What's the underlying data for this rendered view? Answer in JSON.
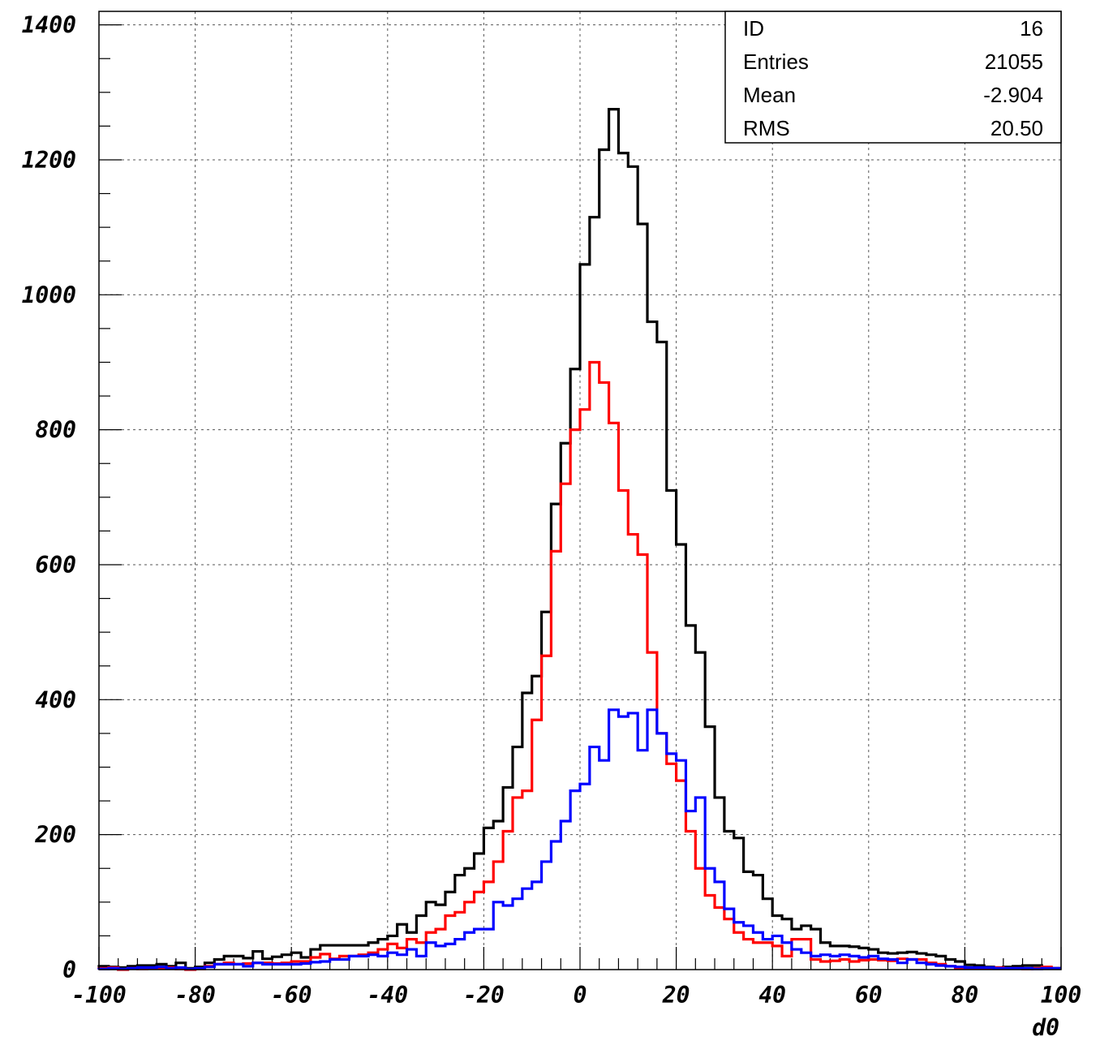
{
  "chart_data": {
    "type": "line",
    "xlabel": "d0",
    "ylabel": "",
    "xlim": [
      -100,
      100
    ],
    "ylim": [
      0,
      1420
    ],
    "bin_width": 2,
    "grid": true,
    "x_ticks": [
      -100,
      -80,
      -60,
      -40,
      -20,
      0,
      20,
      40,
      60,
      80,
      100
    ],
    "y_ticks": [
      0,
      200,
      400,
      600,
      800,
      1000,
      1200,
      1400
    ],
    "stats_box": {
      "rows": [
        {
          "label": "ID",
          "value": "16"
        },
        {
          "label": "Entries",
          "value": "21055"
        },
        {
          "label": "Mean",
          "value": "-2.904"
        },
        {
          "label": "RMS",
          "value": "20.50"
        }
      ]
    },
    "series": [
      {
        "color": "#000000",
        "values": [
          5,
          4,
          3,
          5,
          6,
          6,
          8,
          5,
          10,
          2,
          4,
          10,
          15,
          20,
          20,
          17,
          27,
          16,
          19,
          22,
          25,
          18,
          30,
          36,
          36,
          36,
          36,
          36,
          40,
          45,
          50,
          67,
          55,
          80,
          100,
          96,
          115,
          140,
          150,
          172,
          210,
          220,
          270,
          330,
          410,
          435,
          530,
          690,
          780,
          890,
          1045,
          1115,
          1215,
          1275,
          1210,
          1190,
          1105,
          960,
          930,
          710,
          630,
          510,
          470,
          360,
          255,
          205,
          195,
          145,
          140,
          105,
          80,
          75,
          60,
          65,
          60,
          40,
          35,
          35,
          34,
          32,
          30,
          25,
          24,
          25,
          26,
          24,
          22,
          20,
          15,
          12,
          7,
          6,
          4,
          3,
          4,
          5,
          6,
          6,
          3,
          2
        ]
      },
      {
        "color": "#ff0000",
        "values": [
          2,
          3,
          0,
          2,
          1,
          2,
          2,
          3,
          1,
          0,
          1,
          5,
          8,
          10,
          8,
          9,
          10,
          10,
          9,
          10,
          12,
          12,
          18,
          23,
          16,
          20,
          20,
          22,
          25,
          30,
          38,
          32,
          45,
          40,
          55,
          60,
          80,
          85,
          100,
          115,
          130,
          160,
          205,
          255,
          265,
          370,
          465,
          620,
          720,
          800,
          830,
          900,
          870,
          810,
          710,
          645,
          615,
          470,
          350,
          305,
          280,
          205,
          150,
          110,
          92,
          75,
          55,
          45,
          40,
          40,
          35,
          20,
          45,
          45,
          15,
          12,
          13,
          15,
          12,
          14,
          15,
          14,
          13,
          16,
          15,
          15,
          10,
          8,
          5,
          2,
          2,
          2,
          2,
          3,
          2,
          2,
          1,
          2,
          4,
          2
        ]
      },
      {
        "color": "#0000ff",
        "values": [
          1,
          2,
          1,
          2,
          3,
          3,
          4,
          2,
          3,
          1,
          2,
          4,
          8,
          8,
          8,
          5,
          10,
          8,
          8,
          8,
          8,
          9,
          11,
          12,
          15,
          15,
          20,
          20,
          22,
          20,
          25,
          22,
          30,
          20,
          40,
          35,
          38,
          45,
          55,
          60,
          60,
          100,
          95,
          105,
          120,
          130,
          160,
          190,
          220,
          265,
          275,
          330,
          310,
          385,
          375,
          380,
          325,
          385,
          350,
          320,
          310,
          235,
          255,
          150,
          130,
          90,
          70,
          65,
          55,
          45,
          50,
          40,
          30,
          25,
          20,
          22,
          20,
          22,
          20,
          18,
          20,
          16,
          15,
          10,
          15,
          10,
          8,
          6,
          5,
          4,
          3,
          3,
          3,
          2,
          2,
          2,
          2,
          1,
          2,
          2
        ]
      }
    ]
  }
}
